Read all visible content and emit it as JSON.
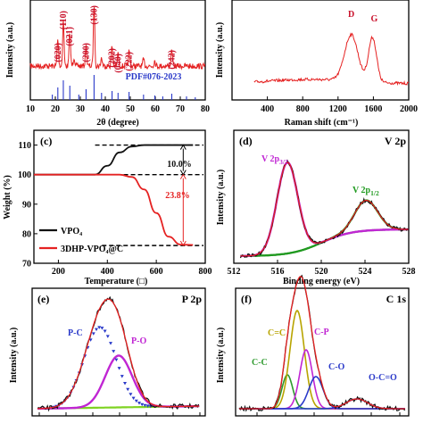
{
  "chart_data": [
    {
      "id": "xrd",
      "type": "line",
      "xlabel": "2θ (degree)",
      "ylabel": "Intensity (a.u.)",
      "xlim": [
        10,
        80
      ],
      "xticks": [
        "10",
        "20",
        "30",
        "40",
        "50",
        "60",
        "70",
        "80"
      ],
      "reference": "PDF#076-2023",
      "peaks": [
        {
          "label": "(020)",
          "x": 21.0
        },
        {
          "label": "(110)",
          "x": 23.2
        },
        {
          "label": "(021)",
          "x": 25.8
        },
        {
          "label": "(200)",
          "x": 32.3
        },
        {
          "label": "(130)",
          "x": 35.5
        },
        {
          "label": "(202)",
          "x": 42.7
        },
        {
          "label": "(040)",
          "x": 45.1
        },
        {
          "label": "(222)",
          "x": 49.5
        },
        {
          "label": "(242)",
          "x": 66.6
        }
      ],
      "colors": {
        "pattern": "#e52222",
        "ticks": "#2a39c9",
        "labels": "#c9122c"
      }
    },
    {
      "id": "raman",
      "type": "line",
      "xlabel": "Raman shift (cm⁻¹)",
      "ylabel": "Intensity (a.u.)",
      "xlim": [
        0,
        2000
      ],
      "xticks": [
        "400",
        "800",
        "1200",
        "1600",
        "2000"
      ],
      "bands": [
        {
          "label": "D",
          "x": 1350
        },
        {
          "label": "G",
          "x": 1590
        }
      ],
      "colors": {
        "line": "#e52222",
        "labels": "#c9122c"
      }
    },
    {
      "id": "tga",
      "panel": "(c)",
      "type": "line",
      "xlabel": "Temperature (□)",
      "ylabel": "Weight (%)",
      "xlim": [
        100,
        800
      ],
      "ylim": [
        70,
        115
      ],
      "xticks": [
        "200",
        "400",
        "600",
        "800"
      ],
      "yticks": [
        "70",
        "80",
        "90",
        "100",
        "110"
      ],
      "series": [
        {
          "name": "VPO₄",
          "color": "#111111",
          "points": [
            [
              100,
              100
            ],
            [
              350,
              100
            ],
            [
              400,
              103
            ],
            [
              450,
              107.5
            ],
            [
              500,
              109.5
            ],
            [
              550,
              110
            ],
            [
              750,
              110
            ]
          ]
        },
        {
          "name": "3DHP-VPO₄@C",
          "color": "#e52222",
          "points": [
            [
              100,
              100
            ],
            [
              450,
              100
            ],
            [
              500,
              99.2
            ],
            [
              550,
              95
            ],
            [
              600,
              87
            ],
            [
              650,
              79
            ],
            [
              700,
              76.3
            ],
            [
              750,
              76.2
            ]
          ]
        }
      ],
      "annotations": [
        {
          "text": "10.0%",
          "color": "#111111"
        },
        {
          "text": "23.8%",
          "color": "#e52222"
        }
      ]
    },
    {
      "id": "xps-v2p",
      "panel": "(d)",
      "type": "line",
      "title": "V 2p",
      "xlabel": "Binding energy (eV)",
      "ylabel": "Intensity (a.u.)",
      "xlim": [
        512,
        528
      ],
      "xticks": [
        "512",
        "516",
        "520",
        "524",
        "528"
      ],
      "peaks": [
        {
          "label": "V 2p",
          "sub": "3/2",
          "x": 516.9,
          "color": "#c026d3"
        },
        {
          "label": "V 2p",
          "sub": "1/2",
          "x": 524.1,
          "color": "#1f9a1f"
        }
      ],
      "colors": {
        "data": "#111111",
        "fit": "#e52222",
        "v32": "#c026d3",
        "v12": "#1f9a1f",
        "background": "#2e8b2e"
      }
    },
    {
      "id": "xps-p2p",
      "panel": "(e)",
      "type": "line",
      "title": "P 2p",
      "ylabel": "Intensity (a.u.)",
      "components": [
        {
          "label": "P-C",
          "color": "#2a39c9"
        },
        {
          "label": "P-O",
          "color": "#c026d3"
        }
      ],
      "colors": {
        "data": "#111111",
        "fit": "#e52222",
        "background": "#7ed321"
      }
    },
    {
      "id": "xps-c1s",
      "panel": "(f)",
      "type": "line",
      "title": "C 1s",
      "ylabel": "Intensity (a.u.)",
      "components": [
        {
          "label": "C=C",
          "color": "#b8a400"
        },
        {
          "label": "C-C",
          "color": "#2e9a2e"
        },
        {
          "label": "C-P",
          "color": "#c026d3"
        },
        {
          "label": "C-O",
          "color": "#2a39c9"
        },
        {
          "label": "O-C=O",
          "color": "#2a39c9"
        }
      ],
      "colors": {
        "data": "#111111",
        "fit": "#e52222"
      }
    }
  ]
}
